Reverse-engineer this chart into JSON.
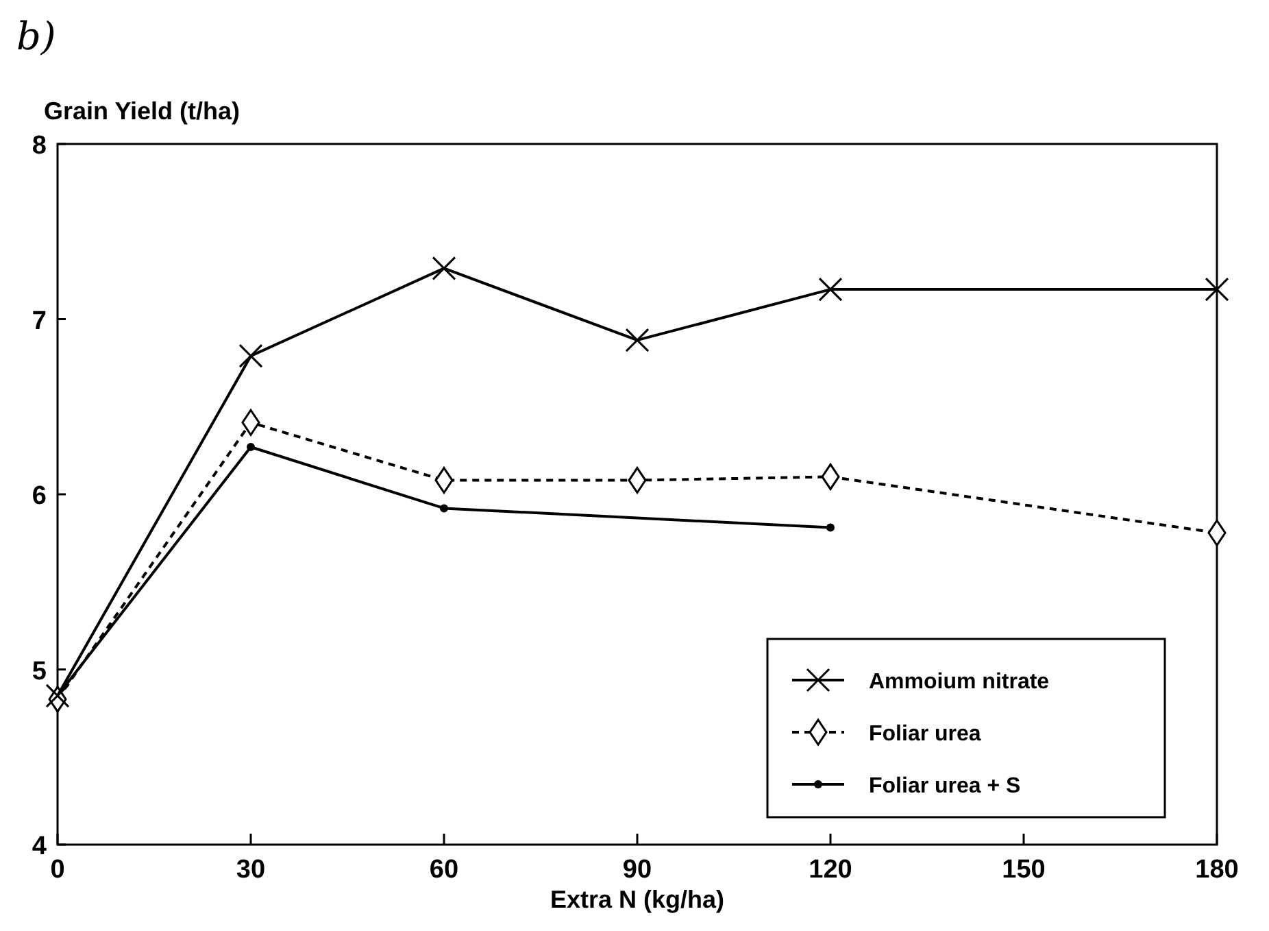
{
  "chart_data": {
    "type": "line",
    "xlabel": "Extra N (kg/ha)",
    "ylabel": "Grain Yield (t/ha)",
    "annotations": [
      "b)"
    ],
    "x": [
      0,
      30,
      60,
      90,
      120,
      180
    ],
    "xlim": [
      0,
      180
    ],
    "xticks": [
      0,
      30,
      60,
      90,
      120,
      150,
      180
    ],
    "ylim": [
      4,
      8
    ],
    "yticks": [
      4,
      5,
      6,
      7,
      8
    ],
    "grid": false,
    "legend": "bottom right",
    "series": [
      {
        "name": "Ammoium nitrate",
        "color": "#000000",
        "marker": "cross",
        "line_style": "solid",
        "values": [
          4.85,
          6.79,
          7.29,
          6.88,
          7.17,
          7.17
        ]
      },
      {
        "name": "Foliar urea",
        "color": "#000000",
        "marker": "diamond",
        "line_style": "dashed",
        "values": [
          4.83,
          6.41,
          6.08,
          6.08,
          6.1,
          5.78
        ]
      },
      {
        "name": "Foliar urea + S",
        "color": "#000000",
        "marker": "circle",
        "line_style": "solid",
        "values": [
          4.85,
          6.27,
          5.92,
          null,
          5.81,
          null
        ]
      }
    ]
  }
}
